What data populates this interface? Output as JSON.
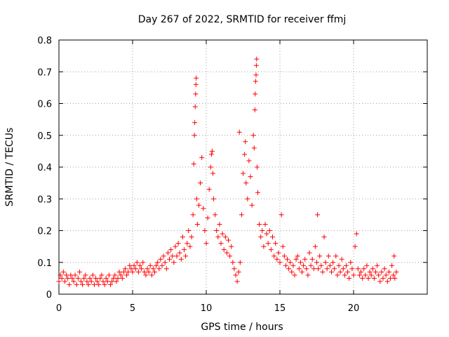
{
  "chart_data": {
    "type": "scatter",
    "title": "Day 267 of 2022, SRMTID for receiver ffmj",
    "xlabel": "GPS time / hours",
    "ylabel": "SRMTID / TECUs",
    "xlim": [
      0,
      25
    ],
    "ylim": [
      0,
      0.8
    ],
    "xticks": [
      0,
      5,
      10,
      15,
      20
    ],
    "yticks": [
      0,
      0.1,
      0.2,
      0.3,
      0.4,
      0.5,
      0.6,
      0.7,
      0.8
    ],
    "grid": true,
    "marker": "+",
    "color": "#ff0000",
    "series": [
      {
        "name": "SRMTID",
        "points": [
          [
            0.0,
            0.04
          ],
          [
            0.1,
            0.06
          ],
          [
            0.2,
            0.05
          ],
          [
            0.3,
            0.07
          ],
          [
            0.4,
            0.04
          ],
          [
            0.5,
            0.06
          ],
          [
            0.6,
            0.05
          ],
          [
            0.7,
            0.03
          ],
          [
            0.8,
            0.06
          ],
          [
            0.9,
            0.05
          ],
          [
            1.0,
            0.04
          ],
          [
            1.1,
            0.06
          ],
          [
            1.2,
            0.03
          ],
          [
            1.3,
            0.05
          ],
          [
            1.4,
            0.07
          ],
          [
            1.5,
            0.04
          ],
          [
            1.6,
            0.03
          ],
          [
            1.7,
            0.05
          ],
          [
            1.8,
            0.06
          ],
          [
            1.9,
            0.04
          ],
          [
            2.0,
            0.03
          ],
          [
            2.1,
            0.05
          ],
          [
            2.2,
            0.04
          ],
          [
            2.3,
            0.06
          ],
          [
            2.4,
            0.03
          ],
          [
            2.5,
            0.05
          ],
          [
            2.6,
            0.04
          ],
          [
            2.7,
            0.03
          ],
          [
            2.8,
            0.05
          ],
          [
            2.9,
            0.06
          ],
          [
            3.0,
            0.04
          ],
          [
            3.1,
            0.03
          ],
          [
            3.2,
            0.05
          ],
          [
            3.3,
            0.04
          ],
          [
            3.4,
            0.06
          ],
          [
            3.5,
            0.03
          ],
          [
            3.6,
            0.04
          ],
          [
            3.7,
            0.05
          ],
          [
            3.8,
            0.06
          ],
          [
            3.9,
            0.04
          ],
          [
            4.0,
            0.05
          ],
          [
            4.1,
            0.07
          ],
          [
            4.2,
            0.06
          ],
          [
            4.3,
            0.05
          ],
          [
            4.4,
            0.07
          ],
          [
            4.5,
            0.08
          ],
          [
            4.6,
            0.06
          ],
          [
            4.7,
            0.07
          ],
          [
            4.8,
            0.09
          ],
          [
            4.9,
            0.08
          ],
          [
            5.0,
            0.07
          ],
          [
            5.1,
            0.09
          ],
          [
            5.2,
            0.08
          ],
          [
            5.3,
            0.1
          ],
          [
            5.4,
            0.07
          ],
          [
            5.5,
            0.09
          ],
          [
            5.6,
            0.08
          ],
          [
            5.7,
            0.1
          ],
          [
            5.8,
            0.07
          ],
          [
            5.9,
            0.06
          ],
          [
            6.0,
            0.08
          ],
          [
            6.1,
            0.07
          ],
          [
            6.2,
            0.09
          ],
          [
            6.3,
            0.06
          ],
          [
            6.4,
            0.08
          ],
          [
            6.5,
            0.07
          ],
          [
            6.6,
            0.09
          ],
          [
            6.7,
            0.1
          ],
          [
            6.8,
            0.08
          ],
          [
            6.9,
            0.11
          ],
          [
            7.0,
            0.09
          ],
          [
            7.1,
            0.12
          ],
          [
            7.2,
            0.1
          ],
          [
            7.3,
            0.08
          ],
          [
            7.4,
            0.13
          ],
          [
            7.5,
            0.11
          ],
          [
            7.6,
            0.14
          ],
          [
            7.7,
            0.12
          ],
          [
            7.8,
            0.1
          ],
          [
            7.9,
            0.15
          ],
          [
            8.0,
            0.12
          ],
          [
            8.1,
            0.16
          ],
          [
            8.2,
            0.13
          ],
          [
            8.3,
            0.11
          ],
          [
            8.4,
            0.18
          ],
          [
            8.5,
            0.14
          ],
          [
            8.6,
            0.12
          ],
          [
            8.7,
            0.16
          ],
          [
            8.8,
            0.2
          ],
          [
            8.9,
            0.15
          ],
          [
            9.0,
            0.18
          ],
          [
            9.1,
            0.25
          ],
          [
            9.15,
            0.41
          ],
          [
            9.2,
            0.5
          ],
          [
            9.22,
            0.54
          ],
          [
            9.25,
            0.59
          ],
          [
            9.28,
            0.63
          ],
          [
            9.3,
            0.66
          ],
          [
            9.32,
            0.68
          ],
          [
            9.35,
            0.3
          ],
          [
            9.4,
            0.22
          ],
          [
            9.5,
            0.28
          ],
          [
            9.6,
            0.35
          ],
          [
            9.7,
            0.43
          ],
          [
            9.8,
            0.27
          ],
          [
            9.9,
            0.2
          ],
          [
            10.0,
            0.16
          ],
          [
            10.1,
            0.24
          ],
          [
            10.2,
            0.33
          ],
          [
            10.3,
            0.4
          ],
          [
            10.35,
            0.44
          ],
          [
            10.4,
            0.45
          ],
          [
            10.45,
            0.38
          ],
          [
            10.5,
            0.3
          ],
          [
            10.6,
            0.25
          ],
          [
            10.7,
            0.2
          ],
          [
            10.8,
            0.18
          ],
          [
            10.9,
            0.22
          ],
          [
            11.0,
            0.16
          ],
          [
            11.1,
            0.19
          ],
          [
            11.2,
            0.14
          ],
          [
            11.3,
            0.18
          ],
          [
            11.4,
            0.13
          ],
          [
            11.5,
            0.17
          ],
          [
            11.6,
            0.12
          ],
          [
            11.7,
            0.15
          ],
          [
            11.8,
            0.1
          ],
          [
            11.9,
            0.08
          ],
          [
            12.0,
            0.06
          ],
          [
            12.1,
            0.04
          ],
          [
            12.2,
            0.07
          ],
          [
            12.25,
            0.51
          ],
          [
            12.3,
            0.1
          ],
          [
            12.4,
            0.25
          ],
          [
            12.5,
            0.38
          ],
          [
            12.6,
            0.44
          ],
          [
            12.65,
            0.48
          ],
          [
            12.7,
            0.35
          ],
          [
            12.8,
            0.3
          ],
          [
            12.9,
            0.42
          ],
          [
            13.0,
            0.37
          ],
          [
            13.1,
            0.28
          ],
          [
            13.2,
            0.5
          ],
          [
            13.25,
            0.46
          ],
          [
            13.3,
            0.58
          ],
          [
            13.32,
            0.63
          ],
          [
            13.35,
            0.67
          ],
          [
            13.38,
            0.69
          ],
          [
            13.4,
            0.72
          ],
          [
            13.42,
            0.74
          ],
          [
            13.45,
            0.4
          ],
          [
            13.5,
            0.32
          ],
          [
            13.6,
            0.22
          ],
          [
            13.7,
            0.18
          ],
          [
            13.8,
            0.2
          ],
          [
            13.9,
            0.15
          ],
          [
            14.0,
            0.22
          ],
          [
            14.1,
            0.19
          ],
          [
            14.2,
            0.16
          ],
          [
            14.3,
            0.2
          ],
          [
            14.4,
            0.14
          ],
          [
            14.5,
            0.18
          ],
          [
            14.6,
            0.12
          ],
          [
            14.7,
            0.16
          ],
          [
            14.8,
            0.11
          ],
          [
            14.9,
            0.13
          ],
          [
            15.0,
            0.1
          ],
          [
            15.1,
            0.25
          ],
          [
            15.2,
            0.15
          ],
          [
            15.3,
            0.12
          ],
          [
            15.4,
            0.09
          ],
          [
            15.5,
            0.11
          ],
          [
            15.6,
            0.08
          ],
          [
            15.7,
            0.1
          ],
          [
            15.8,
            0.07
          ],
          [
            15.9,
            0.09
          ],
          [
            16.0,
            0.06
          ],
          [
            16.1,
            0.11
          ],
          [
            16.2,
            0.12
          ],
          [
            16.3,
            0.08
          ],
          [
            16.4,
            0.1
          ],
          [
            16.5,
            0.07
          ],
          [
            16.6,
            0.09
          ],
          [
            16.7,
            0.11
          ],
          [
            16.8,
            0.08
          ],
          [
            16.9,
            0.06
          ],
          [
            17.0,
            0.13
          ],
          [
            17.1,
            0.09
          ],
          [
            17.2,
            0.11
          ],
          [
            17.3,
            0.08
          ],
          [
            17.4,
            0.15
          ],
          [
            17.5,
            0.1
          ],
          [
            17.55,
            0.25
          ],
          [
            17.6,
            0.08
          ],
          [
            17.7,
            0.12
          ],
          [
            17.8,
            0.09
          ],
          [
            17.9,
            0.07
          ],
          [
            18.0,
            0.18
          ],
          [
            18.1,
            0.1
          ],
          [
            18.2,
            0.08
          ],
          [
            18.3,
            0.12
          ],
          [
            18.4,
            0.09
          ],
          [
            18.5,
            0.07
          ],
          [
            18.6,
            0.1
          ],
          [
            18.7,
            0.08
          ],
          [
            18.8,
            0.12
          ],
          [
            18.9,
            0.06
          ],
          [
            19.0,
            0.09
          ],
          [
            19.1,
            0.07
          ],
          [
            19.2,
            0.11
          ],
          [
            19.3,
            0.08
          ],
          [
            19.4,
            0.06
          ],
          [
            19.5,
            0.09
          ],
          [
            19.6,
            0.07
          ],
          [
            19.7,
            0.05
          ],
          [
            19.8,
            0.1
          ],
          [
            19.9,
            0.08
          ],
          [
            20.0,
            0.06
          ],
          [
            20.1,
            0.15
          ],
          [
            20.2,
            0.19
          ],
          [
            20.3,
            0.08
          ],
          [
            20.4,
            0.06
          ],
          [
            20.5,
            0.07
          ],
          [
            20.6,
            0.05
          ],
          [
            20.7,
            0.08
          ],
          [
            20.8,
            0.06
          ],
          [
            20.9,
            0.09
          ],
          [
            21.0,
            0.05
          ],
          [
            21.1,
            0.07
          ],
          [
            21.2,
            0.06
          ],
          [
            21.3,
            0.08
          ],
          [
            21.4,
            0.05
          ],
          [
            21.5,
            0.07
          ],
          [
            21.6,
            0.09
          ],
          [
            21.7,
            0.06
          ],
          [
            21.8,
            0.04
          ],
          [
            21.9,
            0.07
          ],
          [
            22.0,
            0.05
          ],
          [
            22.1,
            0.08
          ],
          [
            22.2,
            0.06
          ],
          [
            22.3,
            0.04
          ],
          [
            22.4,
            0.07
          ],
          [
            22.5,
            0.05
          ],
          [
            22.6,
            0.09
          ],
          [
            22.7,
            0.06
          ],
          [
            22.75,
            0.12
          ],
          [
            22.8,
            0.05
          ],
          [
            22.9,
            0.07
          ]
        ]
      }
    ]
  }
}
